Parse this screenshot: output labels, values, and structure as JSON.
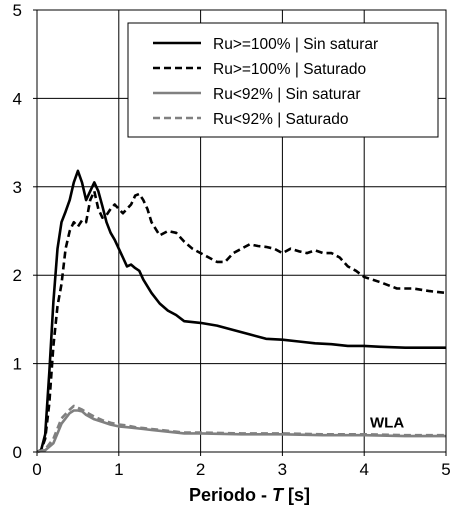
{
  "chart_data": {
    "type": "line",
    "title": "",
    "xlabel_prefix": "Periodo - ",
    "xlabel_italic": "T",
    "xlabel_suffix": " [s]",
    "ylabel": "",
    "xlim": [
      0,
      5
    ],
    "ylim": [
      0,
      5
    ],
    "xticks": [
      "0",
      "1",
      "2",
      "3",
      "4",
      "5"
    ],
    "yticks": [
      "0",
      "1",
      "2",
      "3",
      "4",
      "5"
    ],
    "grid": true,
    "legend_position": "top-right",
    "annotation": {
      "text": "WLA",
      "x": 4.28,
      "y": 0.3
    },
    "series": [
      {
        "name": "Ru>=100% | Sin saturar",
        "color": "#000000",
        "dash": "solid",
        "x": [
          0.0,
          0.05,
          0.1,
          0.15,
          0.2,
          0.25,
          0.3,
          0.35,
          0.4,
          0.45,
          0.5,
          0.55,
          0.6,
          0.65,
          0.7,
          0.75,
          0.8,
          0.85,
          0.9,
          0.95,
          1.0,
          1.05,
          1.1,
          1.15,
          1.2,
          1.25,
          1.3,
          1.4,
          1.5,
          1.6,
          1.7,
          1.8,
          1.9,
          2.0,
          2.2,
          2.4,
          2.6,
          2.8,
          3.0,
          3.2,
          3.4,
          3.6,
          3.8,
          4.0,
          4.2,
          4.5,
          5.0
        ],
        "y": [
          0.0,
          0.02,
          0.2,
          0.9,
          1.7,
          2.3,
          2.6,
          2.72,
          2.85,
          3.05,
          3.18,
          3.05,
          2.85,
          2.95,
          3.05,
          2.95,
          2.78,
          2.6,
          2.48,
          2.4,
          2.3,
          2.2,
          2.1,
          2.12,
          2.08,
          2.05,
          1.95,
          1.8,
          1.68,
          1.6,
          1.55,
          1.48,
          1.47,
          1.46,
          1.43,
          1.38,
          1.33,
          1.28,
          1.27,
          1.25,
          1.23,
          1.22,
          1.2,
          1.2,
          1.19,
          1.18,
          1.18
        ]
      },
      {
        "name": "Ru>=100% | Saturado",
        "color": "#000000",
        "dash": "dashed",
        "x": [
          0.0,
          0.05,
          0.1,
          0.15,
          0.2,
          0.25,
          0.3,
          0.35,
          0.4,
          0.45,
          0.5,
          0.55,
          0.6,
          0.65,
          0.7,
          0.75,
          0.8,
          0.85,
          0.9,
          0.95,
          1.0,
          1.05,
          1.1,
          1.15,
          1.2,
          1.25,
          1.3,
          1.35,
          1.4,
          1.5,
          1.6,
          1.7,
          1.8,
          1.9,
          2.0,
          2.1,
          2.2,
          2.3,
          2.4,
          2.5,
          2.6,
          2.7,
          2.8,
          2.9,
          3.0,
          3.1,
          3.2,
          3.3,
          3.4,
          3.5,
          3.6,
          3.7,
          3.8,
          3.9,
          4.0,
          4.2,
          4.4,
          4.6,
          4.8,
          5.0
        ],
        "y": [
          0.0,
          0.02,
          0.15,
          0.55,
          1.2,
          1.65,
          1.9,
          2.3,
          2.5,
          2.6,
          2.55,
          2.62,
          2.6,
          2.85,
          2.95,
          2.75,
          2.65,
          2.68,
          2.75,
          2.8,
          2.75,
          2.7,
          2.75,
          2.8,
          2.9,
          2.92,
          2.85,
          2.75,
          2.6,
          2.45,
          2.5,
          2.48,
          2.38,
          2.3,
          2.25,
          2.2,
          2.15,
          2.15,
          2.25,
          2.3,
          2.35,
          2.33,
          2.32,
          2.3,
          2.25,
          2.3,
          2.27,
          2.25,
          2.28,
          2.25,
          2.25,
          2.2,
          2.1,
          2.05,
          1.98,
          1.92,
          1.85,
          1.85,
          1.82,
          1.8
        ]
      },
      {
        "name": "Ru<92% | Sin saturar",
        "color": "#808080",
        "dash": "solid",
        "x": [
          0.0,
          0.1,
          0.2,
          0.3,
          0.4,
          0.45,
          0.5,
          0.55,
          0.6,
          0.7,
          0.8,
          0.9,
          1.0,
          1.1,
          1.2,
          1.3,
          1.4,
          1.5,
          1.6,
          1.7,
          1.8,
          2.0,
          2.5,
          3.0,
          3.5,
          4.0,
          4.5,
          5.0
        ],
        "y": [
          0.0,
          0.02,
          0.1,
          0.32,
          0.44,
          0.47,
          0.47,
          0.46,
          0.42,
          0.37,
          0.34,
          0.31,
          0.29,
          0.28,
          0.27,
          0.26,
          0.25,
          0.24,
          0.23,
          0.22,
          0.21,
          0.21,
          0.2,
          0.2,
          0.19,
          0.19,
          0.18,
          0.18
        ]
      },
      {
        "name": "Ru<92% | Saturado",
        "color": "#808080",
        "dash": "dashed",
        "x": [
          0.0,
          0.1,
          0.2,
          0.3,
          0.4,
          0.45,
          0.5,
          0.55,
          0.6,
          0.7,
          0.8,
          0.9,
          1.0,
          1.1,
          1.2,
          1.3,
          1.4,
          1.5,
          1.6,
          1.7,
          1.8,
          2.0,
          2.5,
          3.0,
          3.5,
          4.0,
          4.5,
          5.0
        ],
        "y": [
          0.0,
          0.03,
          0.15,
          0.38,
          0.48,
          0.52,
          0.5,
          0.48,
          0.45,
          0.4,
          0.36,
          0.33,
          0.31,
          0.3,
          0.28,
          0.27,
          0.26,
          0.25,
          0.24,
          0.23,
          0.22,
          0.22,
          0.21,
          0.21,
          0.2,
          0.2,
          0.19,
          0.19
        ]
      }
    ]
  }
}
